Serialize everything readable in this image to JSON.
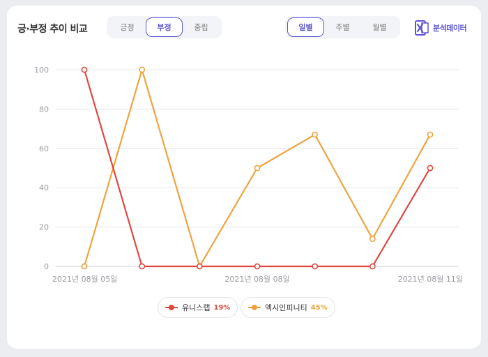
{
  "header": {
    "title": "긍·부정 추이 비교",
    "sentiment_tabs": [
      {
        "label": "긍정",
        "active": false
      },
      {
        "label": "부정",
        "active": true
      },
      {
        "label": "중립",
        "active": false
      }
    ],
    "period_tabs": [
      {
        "label": "일별",
        "active": true
      },
      {
        "label": "주별",
        "active": false
      },
      {
        "label": "월별",
        "active": false
      }
    ],
    "export_label": "분석데이터",
    "export_icon": "excel-icon"
  },
  "chart_data": {
    "type": "line",
    "title": "",
    "xlabel": "",
    "ylabel": "",
    "x": [
      "2021년 08월 05일",
      "2021년 08월 06일",
      "2021년 08월 07일",
      "2021년 08월 08일",
      "2021년 08월 09일",
      "2021년 08월 10일",
      "2021년 08월 11일"
    ],
    "x_tick_labels": [
      "2021년 08월 05일",
      "",
      "",
      "2021년 08월 08일",
      "",
      "",
      "2021년 08월 11일"
    ],
    "ylim": [
      0,
      100
    ],
    "yticks": [
      0,
      20,
      40,
      60,
      80,
      100
    ],
    "grid": true,
    "legend_position": "bottom",
    "series": [
      {
        "name": "유니스랩",
        "percent": "19%",
        "color": "#e0473f",
        "values": [
          100,
          0,
          0,
          0,
          0,
          0,
          50
        ]
      },
      {
        "name": "엑시인피니티",
        "percent": "45%",
        "color": "#f0a33c",
        "values": [
          0,
          100,
          0,
          50,
          67,
          14,
          67
        ]
      }
    ]
  }
}
